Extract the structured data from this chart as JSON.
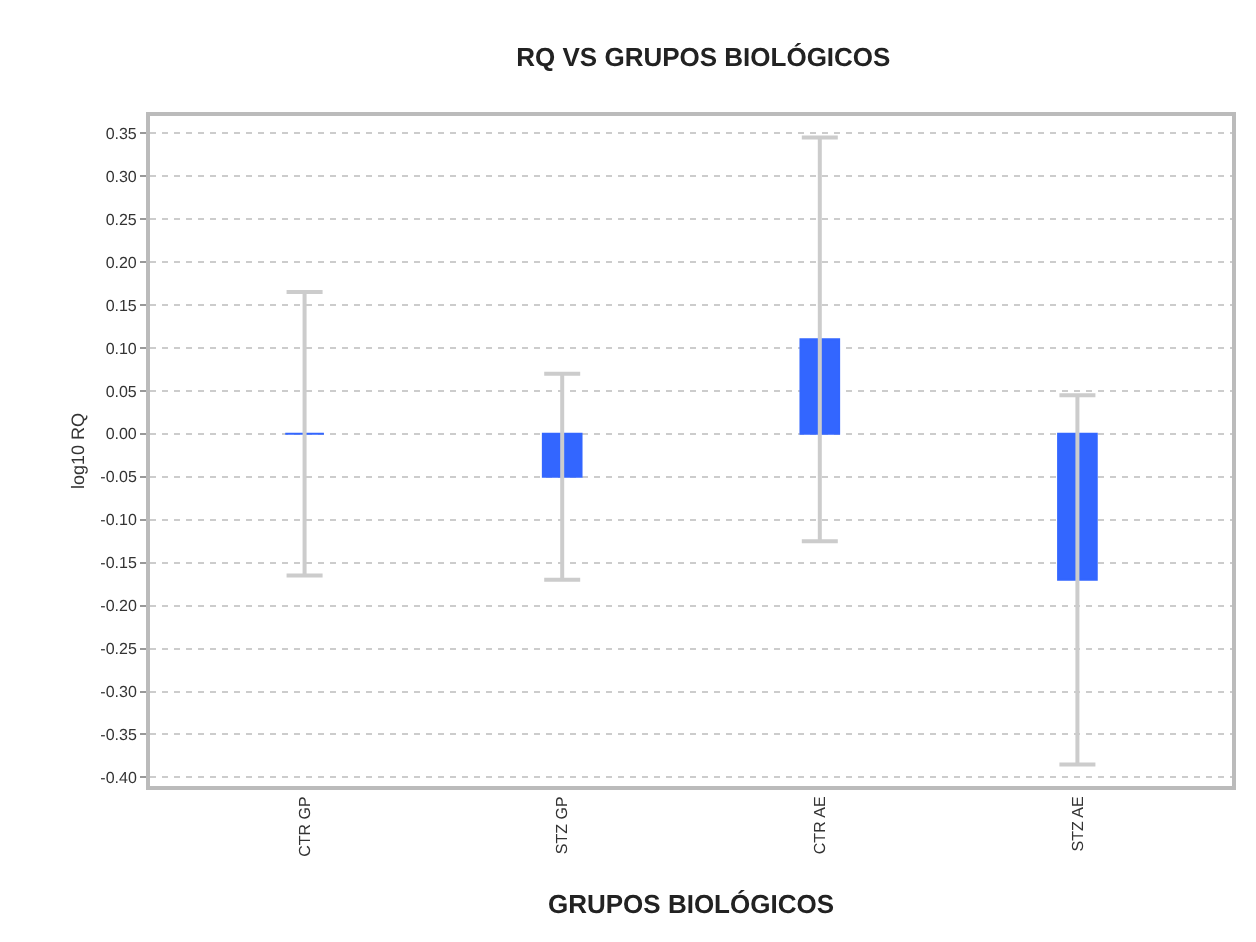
{
  "chart_data": {
    "type": "bar",
    "title": "RQ VS GRUPOS BIOLÓGICOS",
    "xlabel": "GRUPOS BIOLÓGICOS",
    "ylabel": "log10 RQ",
    "categories": [
      "CTR GP",
      "STZ GP",
      "CTR AE",
      "STZ AE"
    ],
    "series": [
      {
        "color": "#3366ff",
        "values": [
          0,
          -0.05,
          0.11,
          -0.17
        ],
        "errors": [
          0.165,
          0.12,
          0.235,
          0.215
        ]
      }
    ],
    "ylim": [
      -0.41,
      0.37
    ],
    "yticks": [
      {
        "value": 0.35,
        "label": "0.35"
      },
      {
        "value": 0.3,
        "label": "0.30"
      },
      {
        "value": 0.25,
        "label": "0.25"
      },
      {
        "value": 0.2,
        "label": "0.20"
      },
      {
        "value": 0.15,
        "label": "0.15"
      },
      {
        "value": 0.1,
        "label": "0.10"
      },
      {
        "value": 0.05,
        "label": "0.05"
      },
      {
        "value": 0,
        "label": "0.00"
      },
      {
        "value": -0.05,
        "label": "-0.05"
      },
      {
        "value": -0.1,
        "label": "-0.10"
      },
      {
        "value": -0.15,
        "label": "-0.15"
      },
      {
        "value": -0.2,
        "label": "-0.20"
      },
      {
        "value": -0.25,
        "label": "-0.25"
      },
      {
        "value": -0.3,
        "label": "-0.30"
      },
      {
        "value": -0.35,
        "label": "-0.35"
      },
      {
        "value": -0.4,
        "label": "-0.40"
      }
    ],
    "grid": "y",
    "legend": false
  }
}
